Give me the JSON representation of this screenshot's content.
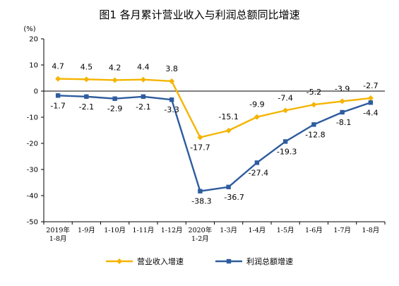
{
  "chart_data": {
    "type": "line",
    "title": "图1  各月累计营业收入与利润总额同比增速",
    "ylabel": "(%)",
    "xlabel": "",
    "ylim": [
      -50,
      20
    ],
    "yticks": [
      20,
      10,
      0,
      -10,
      -20,
      -30,
      -40,
      -50
    ],
    "categories": [
      "2019年\n1-8月",
      "1-9月",
      "1-10月",
      "1-11月",
      "1-12月",
      "2020年\n1-2月",
      "1-3月",
      "1-4月",
      "1-5月",
      "1-6月",
      "1-7月",
      "1-8月"
    ],
    "series": [
      {
        "name": "营业收入增速",
        "color": "#F5B400",
        "marker": "diamond",
        "values": [
          4.7,
          4.5,
          4.2,
          4.4,
          3.8,
          -17.7,
          -15.1,
          -9.9,
          -7.4,
          -5.2,
          -3.9,
          -2.7
        ]
      },
      {
        "name": "利润总额增速",
        "color": "#2E5C9E",
        "marker": "square",
        "values": [
          -1.7,
          -2.1,
          -2.9,
          -2.1,
          -3.3,
          -38.3,
          -36.7,
          -27.4,
          -19.3,
          -12.8,
          -8.1,
          -4.4
        ]
      }
    ],
    "grid": false,
    "legend_position": "bottom"
  }
}
